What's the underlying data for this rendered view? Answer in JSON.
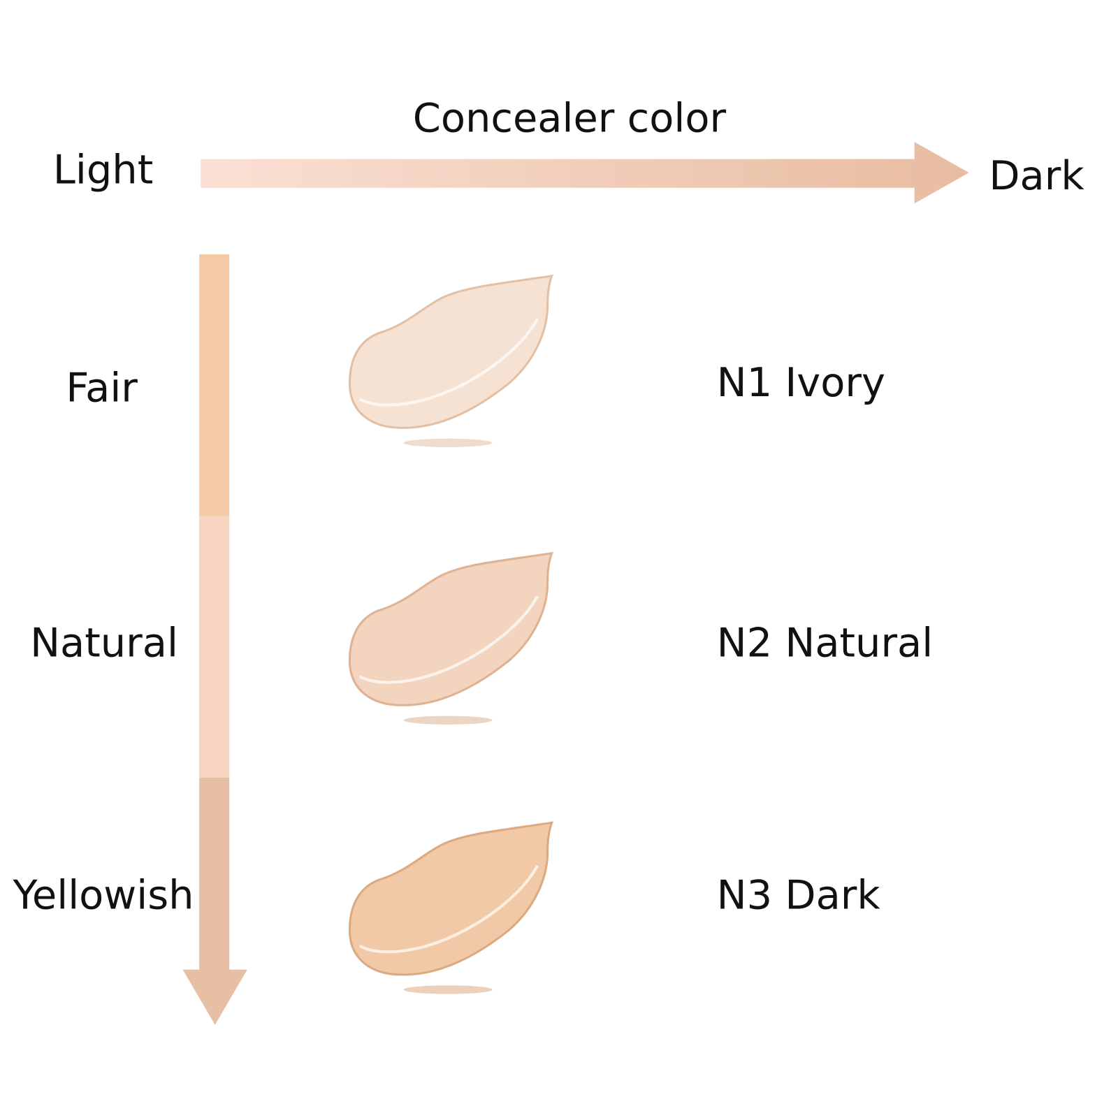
{
  "title": "Concealer color",
  "horizontal_axis": {
    "start_label": "Light",
    "end_label": "Dark",
    "gradient": [
      "#fae0d4",
      "#e8bca0"
    ]
  },
  "vertical_axis": {
    "rows": [
      {
        "label": "Fair",
        "bar_color": "#f5c9a3"
      },
      {
        "label": "Natural",
        "bar_color": "#f7d5c0"
      },
      {
        "label": "Yellowish",
        "bar_color": "#e6bfa5"
      }
    ],
    "arrow_color": "#e6bfa5"
  },
  "swatches": [
    {
      "name": "N1 Ivory",
      "color": "#f6e2d2",
      "edge": "#e3c0a4"
    },
    {
      "name": "N2 Natural",
      "color": "#f3d4be",
      "edge": "#dfb292"
    },
    {
      "name": "N3 Dark",
      "color": "#f2c9a6",
      "edge": "#dcaa80"
    }
  ]
}
